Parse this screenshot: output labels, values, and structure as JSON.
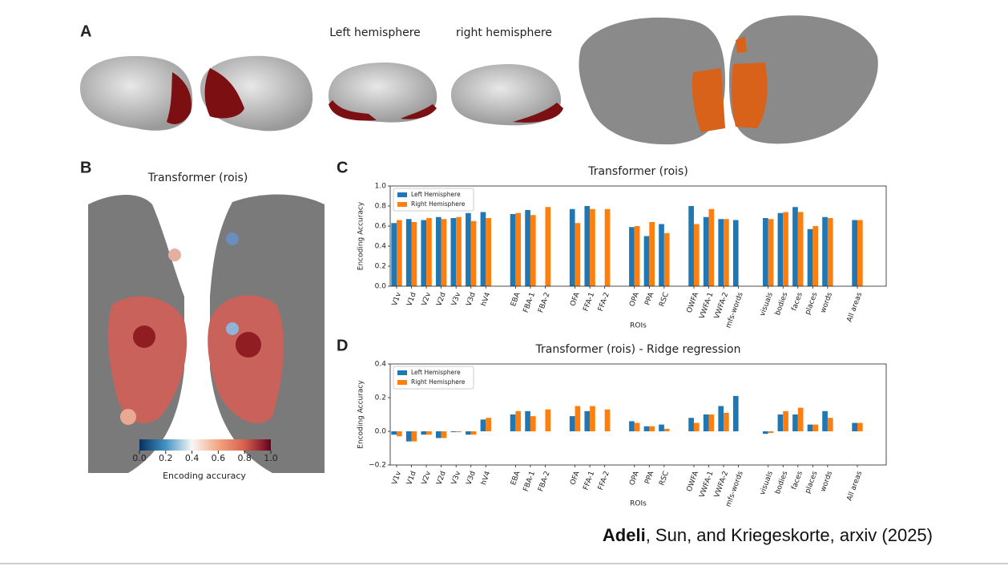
{
  "panels": {
    "A": {
      "label": "A",
      "left_title": "Left hemisphere",
      "right_title": "right hemisphere"
    },
    "B": {
      "label": "B",
      "title": "Transformer (rois)",
      "colorbar": {
        "label": "Encoding accuracy",
        "lim": [
          0,
          1
        ],
        "ticks": [
          {
            "value": 0,
            "label": "0.0"
          },
          {
            "value": 0.2,
            "label": "0.2"
          },
          {
            "value": 0.4,
            "label": "0.4"
          },
          {
            "value": 0.6,
            "label": "0.6"
          },
          {
            "value": 0.8,
            "label": "0.8"
          },
          {
            "value": 1,
            "label": "1.0"
          }
        ]
      }
    }
  },
  "chart_data": [
    {
      "type": "bar",
      "panel": "C",
      "title": "Transformer (rois)",
      "xlabel": "ROIs",
      "ylabel": "Encoding Accuracy",
      "legend": "upper left",
      "categories": [
        "V1v",
        "V1d",
        "V2v",
        "V2d",
        "V3v",
        "V3d",
        "hV4",
        null,
        "EBA",
        "FBA-1",
        "FBA-2",
        null,
        "OFA",
        "FFA-1",
        "FFA-2",
        null,
        "OPA",
        "PPA",
        "RSC",
        null,
        "OWFA",
        "VWFA-1",
        "VWFA-2",
        "mfs-words",
        null,
        "visuals",
        "bodies",
        "faces",
        "places",
        "words",
        null,
        "All areas"
      ],
      "series": [
        {
          "name": "Left Hemisphere",
          "color": "#1f77b4",
          "values": [
            0.63,
            0.67,
            0.66,
            0.69,
            0.68,
            0.73,
            0.74,
            null,
            0.72,
            0.76,
            null,
            null,
            0.77,
            0.8,
            null,
            null,
            0.59,
            0.5,
            0.62,
            null,
            0.8,
            0.69,
            0.67,
            0.66,
            null,
            0.68,
            0.73,
            0.79,
            0.57,
            0.69,
            null,
            0.66
          ]
        },
        {
          "name": "Right Hemisphere",
          "color": "#ff7f0e",
          "values": [
            0.66,
            0.64,
            0.68,
            0.67,
            0.69,
            0.65,
            0.68,
            null,
            0.73,
            0.71,
            0.79,
            null,
            0.63,
            0.77,
            0.77,
            null,
            0.6,
            0.64,
            0.53,
            null,
            0.62,
            0.77,
            0.67,
            null,
            null,
            0.67,
            0.74,
            0.74,
            0.6,
            0.68,
            null,
            0.66
          ]
        }
      ],
      "ylim": [
        0,
        1
      ],
      "yticks": [
        {
          "value": 0,
          "label": "0.0"
        },
        {
          "value": 0.2,
          "label": "0.2"
        },
        {
          "value": 0.4,
          "label": "0.4"
        },
        {
          "value": 0.6,
          "label": "0.6"
        },
        {
          "value": 0.8,
          "label": "0.8"
        },
        {
          "value": 1,
          "label": "1.0"
        }
      ]
    },
    {
      "type": "bar",
      "panel": "D",
      "title": "Transformer (rois) - Ridge regression",
      "xlabel": "ROIs",
      "ylabel": "Encoding Accuracy",
      "legend": "upper left",
      "categories": [
        "V1v",
        "V1d",
        "V2v",
        "V2d",
        "V3v",
        "V3d",
        "hV4",
        null,
        "EBA",
        "FBA-1",
        "FBA-2",
        null,
        "OFA",
        "FFA-1",
        "FFA-2",
        null,
        "OPA",
        "PPA",
        "RSC",
        null,
        "OWFA",
        "VWFA-1",
        "VWFA-2",
        "mfs-words",
        null,
        "visuals",
        "bodies",
        "faces",
        "places",
        "words",
        null,
        "All areas"
      ],
      "series": [
        {
          "name": "Left Hemisphere",
          "color": "#1f77b4",
          "values": [
            -0.02,
            -0.06,
            -0.02,
            -0.04,
            -0.005,
            -0.02,
            0.07,
            null,
            0.1,
            0.12,
            null,
            null,
            0.09,
            0.12,
            null,
            null,
            0.06,
            0.03,
            0.04,
            null,
            0.08,
            0.1,
            0.15,
            0.21,
            null,
            -0.015,
            0.1,
            0.1,
            0.04,
            0.12,
            null,
            0.05
          ]
        },
        {
          "name": "Right Hemisphere",
          "color": "#ff7f0e",
          "values": [
            -0.03,
            -0.06,
            -0.02,
            -0.04,
            -0.005,
            -0.02,
            0.08,
            null,
            0.12,
            0.09,
            0.13,
            null,
            0.15,
            0.15,
            0.13,
            null,
            0.05,
            0.03,
            0.015,
            null,
            0.05,
            0.1,
            0.11,
            null,
            null,
            -0.01,
            0.12,
            0.14,
            0.04,
            0.08,
            null,
            0.05
          ]
        }
      ],
      "ylim": [
        -0.2,
        0.4
      ],
      "yticks": [
        {
          "value": -0.2,
          "label": "−0.2"
        },
        {
          "value": 0,
          "label": "0.0"
        },
        {
          "value": 0.2,
          "label": "0.2"
        },
        {
          "value": 0.4,
          "label": "0.4"
        }
      ]
    }
  ],
  "citation": {
    "author": "Adeli",
    "rest": ", Sun, and Kriegeskorte, arxiv (2025)"
  }
}
